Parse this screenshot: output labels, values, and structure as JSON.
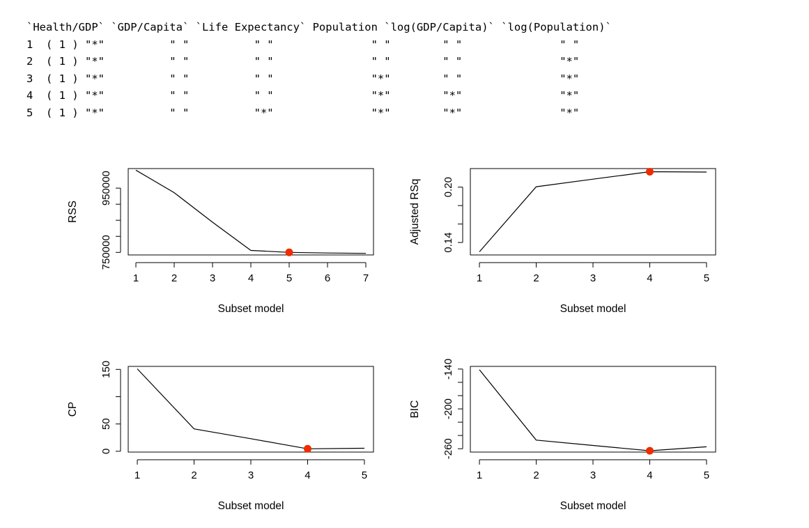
{
  "console": {
    "header": "`Health/GDP` `GDP/Capita` `Life Expectancy` Population `log(GDP/Capita)` `log(Population)`",
    "rows": [
      "1  ( 1 ) \"*\"          \" \"          \" \"               \" \"        \" \"               \" \"",
      "2  ( 1 ) \"*\"          \" \"          \" \"               \" \"        \" \"               \"*\"",
      "3  ( 1 ) \"*\"          \" \"          \" \"               \"*\"        \" \"               \"*\"",
      "4  ( 1 ) \"*\"          \" \"          \" \"               \"*\"        \"*\"               \"*\"",
      "5  ( 1 ) \"*\"          \" \"          \"*\"               \"*\"        \"*\"               \"*\""
    ]
  },
  "chart_data": [
    {
      "type": "line",
      "ylabel": "RSS",
      "xlabel": "Subset model",
      "x": [
        1,
        2,
        3,
        4,
        5,
        6,
        7
      ],
      "y": [
        1006000,
        936000,
        844000,
        756000,
        750000,
        748000,
        747000
      ],
      "x_ticks": [
        1,
        2,
        3,
        4,
        5,
        6,
        7
      ],
      "y_ticks": [
        750000,
        850000,
        950000
      ],
      "y_tick_labels": [
        "750000",
        "",
        "950000"
      ],
      "y_minor_ticks": [
        800000,
        900000
      ],
      "xlim": [
        0.8,
        7.2
      ],
      "ylim": [
        742000,
        1011000
      ],
      "highlight": {
        "x": 5,
        "y": 750000,
        "color": "#ee2c00"
      },
      "line_color": "#000000",
      "grid": false,
      "legend": "none"
    },
    {
      "type": "line",
      "ylabel": "Adjusted RSq",
      "xlabel": "Subset model",
      "x": [
        1,
        2,
        3,
        4,
        5
      ],
      "y": [
        0.1299,
        0.2004,
        0.2086,
        0.2167,
        0.2163
      ],
      "x_ticks": [
        1,
        2,
        3,
        4,
        5
      ],
      "y_ticks": [
        0.14,
        0.2
      ],
      "y_tick_labels": [
        "0.14",
        "0.20"
      ],
      "y_minor_ticks": [
        0.16,
        0.18
      ],
      "xlim": [
        0.84,
        5.16
      ],
      "ylim": [
        0.1265,
        0.2201
      ],
      "highlight": {
        "x": 4,
        "y": 0.2167,
        "color": "#ee2c00"
      },
      "line_color": "#000000",
      "grid": false,
      "legend": "none"
    },
    {
      "type": "line",
      "ylabel": "CP",
      "xlabel": "Subset model",
      "x": [
        1,
        2,
        3,
        4,
        5
      ],
      "y": [
        151,
        41,
        23,
        4.5,
        5.5
      ],
      "x_ticks": [
        1,
        2,
        3,
        4,
        5
      ],
      "y_ticks": [
        0,
        50,
        150
      ],
      "y_tick_labels": [
        "0",
        "50",
        "150"
      ],
      "y_minor_ticks": [
        100
      ],
      "xlim": [
        0.84,
        5.16
      ],
      "ylim": [
        -1.5,
        155.5
      ],
      "highlight": {
        "x": 4,
        "y": 4.5,
        "color": "#ee2c00"
      },
      "line_color": "#000000",
      "grid": false,
      "legend": "none"
    },
    {
      "type": "line",
      "ylabel": "BIC",
      "xlabel": "Subset model",
      "x": [
        1,
        2,
        3,
        4,
        5
      ],
      "y": [
        -141,
        -247,
        -255,
        -263,
        -257
      ],
      "x_ticks": [
        1,
        2,
        3,
        4,
        5
      ],
      "y_ticks": [
        -260,
        -200,
        -140
      ],
      "y_tick_labels": [
        "-260",
        "-200",
        "-140"
      ],
      "y_minor_ticks": [
        -240,
        -220,
        -180,
        -160
      ],
      "xlim": [
        0.84,
        5.16
      ],
      "ylim": [
        -265,
        -136
      ],
      "highlight": {
        "x": 4,
        "y": -263,
        "color": "#ee2c00"
      },
      "line_color": "#000000",
      "grid": false,
      "legend": "none"
    }
  ]
}
